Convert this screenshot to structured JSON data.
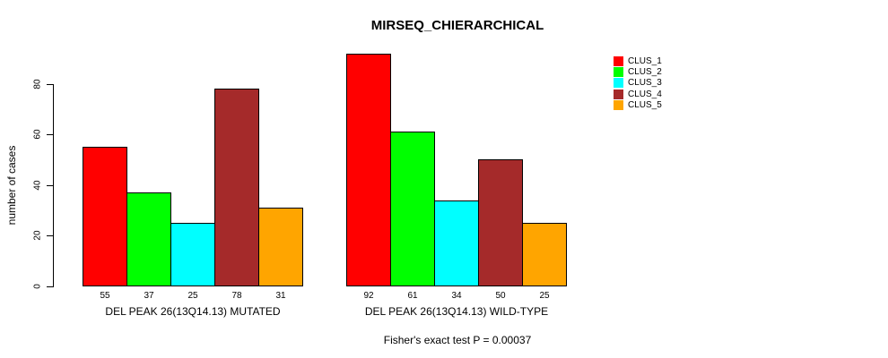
{
  "chart_data": {
    "type": "bar",
    "title": "MIRSEQ_CHIERARCHICAL",
    "ylabel": "number of cases",
    "xlabel": "",
    "annotation": "Fisher's exact test P = 0.00037",
    "y_ticks": [
      0,
      20,
      40,
      60,
      80
    ],
    "ylim": [
      0,
      95
    ],
    "grid": false,
    "legend_position": "right-outside",
    "bar_value_labels_shown": true,
    "categories": [
      "DEL PEAK 26(13Q14.13) MUTATED",
      "DEL PEAK 26(13Q14.13) WILD-TYPE"
    ],
    "series": [
      {
        "name": "CLUS_1",
        "color": "#FF0000",
        "values": [
          55,
          92
        ]
      },
      {
        "name": "CLUS_2",
        "color": "#00FF00",
        "values": [
          37,
          61
        ]
      },
      {
        "name": "CLUS_3",
        "color": "#00FFFF",
        "values": [
          25,
          34
        ]
      },
      {
        "name": "CLUS_4",
        "color": "#A52A2A",
        "values": [
          78,
          50
        ]
      },
      {
        "name": "CLUS_5",
        "color": "#FFA500",
        "values": [
          31,
          25
        ]
      }
    ],
    "colors": {
      "background": "#FFFFFF",
      "axis": "#000000",
      "text": "#000000"
    }
  }
}
